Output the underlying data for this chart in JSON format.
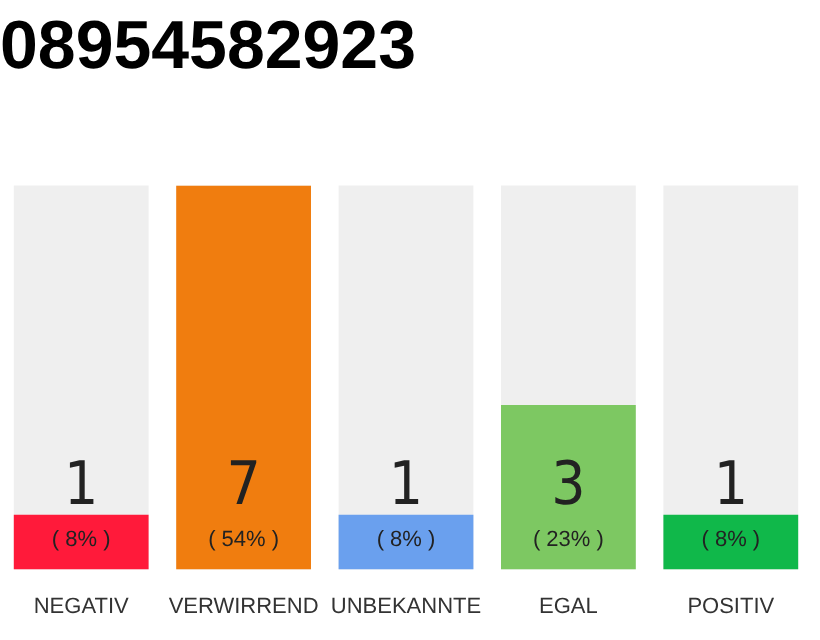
{
  "chart_data": {
    "type": "bar",
    "title": "08954582923",
    "ylim": [
      0,
      7
    ],
    "tick_labels": "x",
    "categories": [
      "NEGATIV",
      "VERWIRREND",
      "UNBEKANNTE",
      "EGAL",
      "POSITIV"
    ],
    "values": [
      1,
      7,
      1,
      3,
      1
    ],
    "colors": [
      "#ff1a3a",
      "#f07d0f",
      "#6aa0ee",
      "#7dc862",
      "#10b84a"
    ],
    "value_labels": [
      "1\n( 8% )",
      "7\n( 54% )",
      "1\n( 8% )",
      "3\n( 23% )",
      "1\n( 8% )"
    ],
    "grid": false,
    "legend": false
  }
}
